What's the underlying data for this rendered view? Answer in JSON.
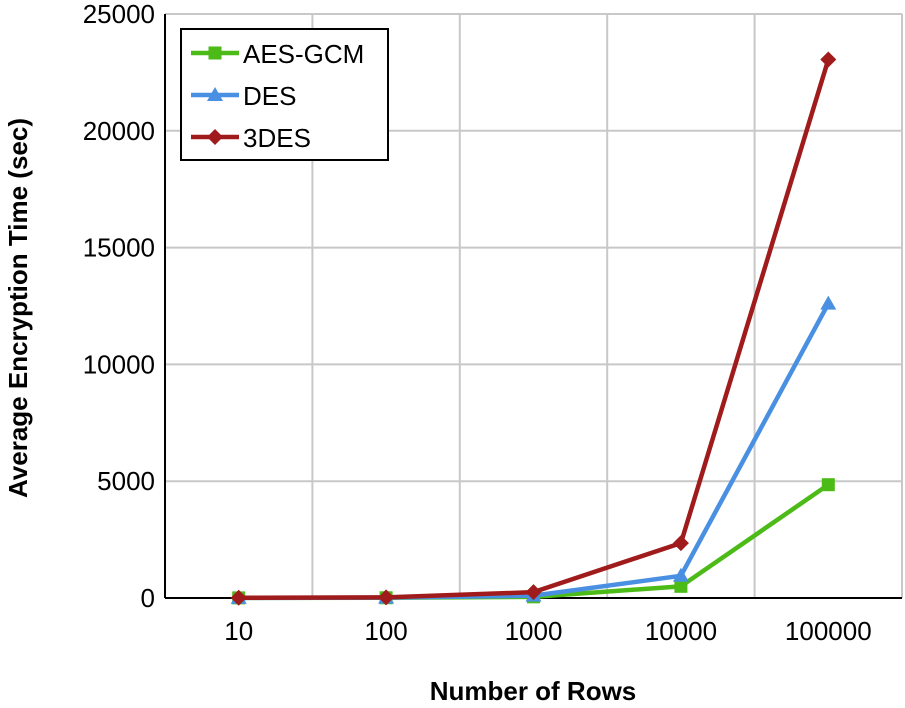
{
  "colors": {
    "AES-GCM": "#4cbb17",
    "DES": "#4a90e2",
    "3DES": "#a01c1c",
    "grid": "#c8c8c8",
    "axis": "#000000"
  },
  "chart_data": {
    "type": "line",
    "title": "",
    "xlabel": "Number of Rows",
    "ylabel": "Average Encryption Time (sec)",
    "categories": [
      "10",
      "100",
      "1000",
      "10000",
      "100000"
    ],
    "ylim": [
      0,
      25000
    ],
    "yticks": [
      0,
      5000,
      10000,
      15000,
      20000,
      25000
    ],
    "ytick_labels": [
      "0",
      "5000",
      "10000",
      "15000",
      "20000",
      "25000"
    ],
    "grid": true,
    "legend_position": "top-left",
    "series": [
      {
        "name": "AES-GCM",
        "marker": "square",
        "values": [
          5,
          10,
          50,
          500,
          4850
        ]
      },
      {
        "name": "DES",
        "marker": "triangle",
        "values": [
          5,
          15,
          100,
          950,
          12600
        ]
      },
      {
        "name": "3DES",
        "marker": "diamond",
        "values": [
          10,
          25,
          250,
          2350,
          23050
        ]
      }
    ]
  }
}
